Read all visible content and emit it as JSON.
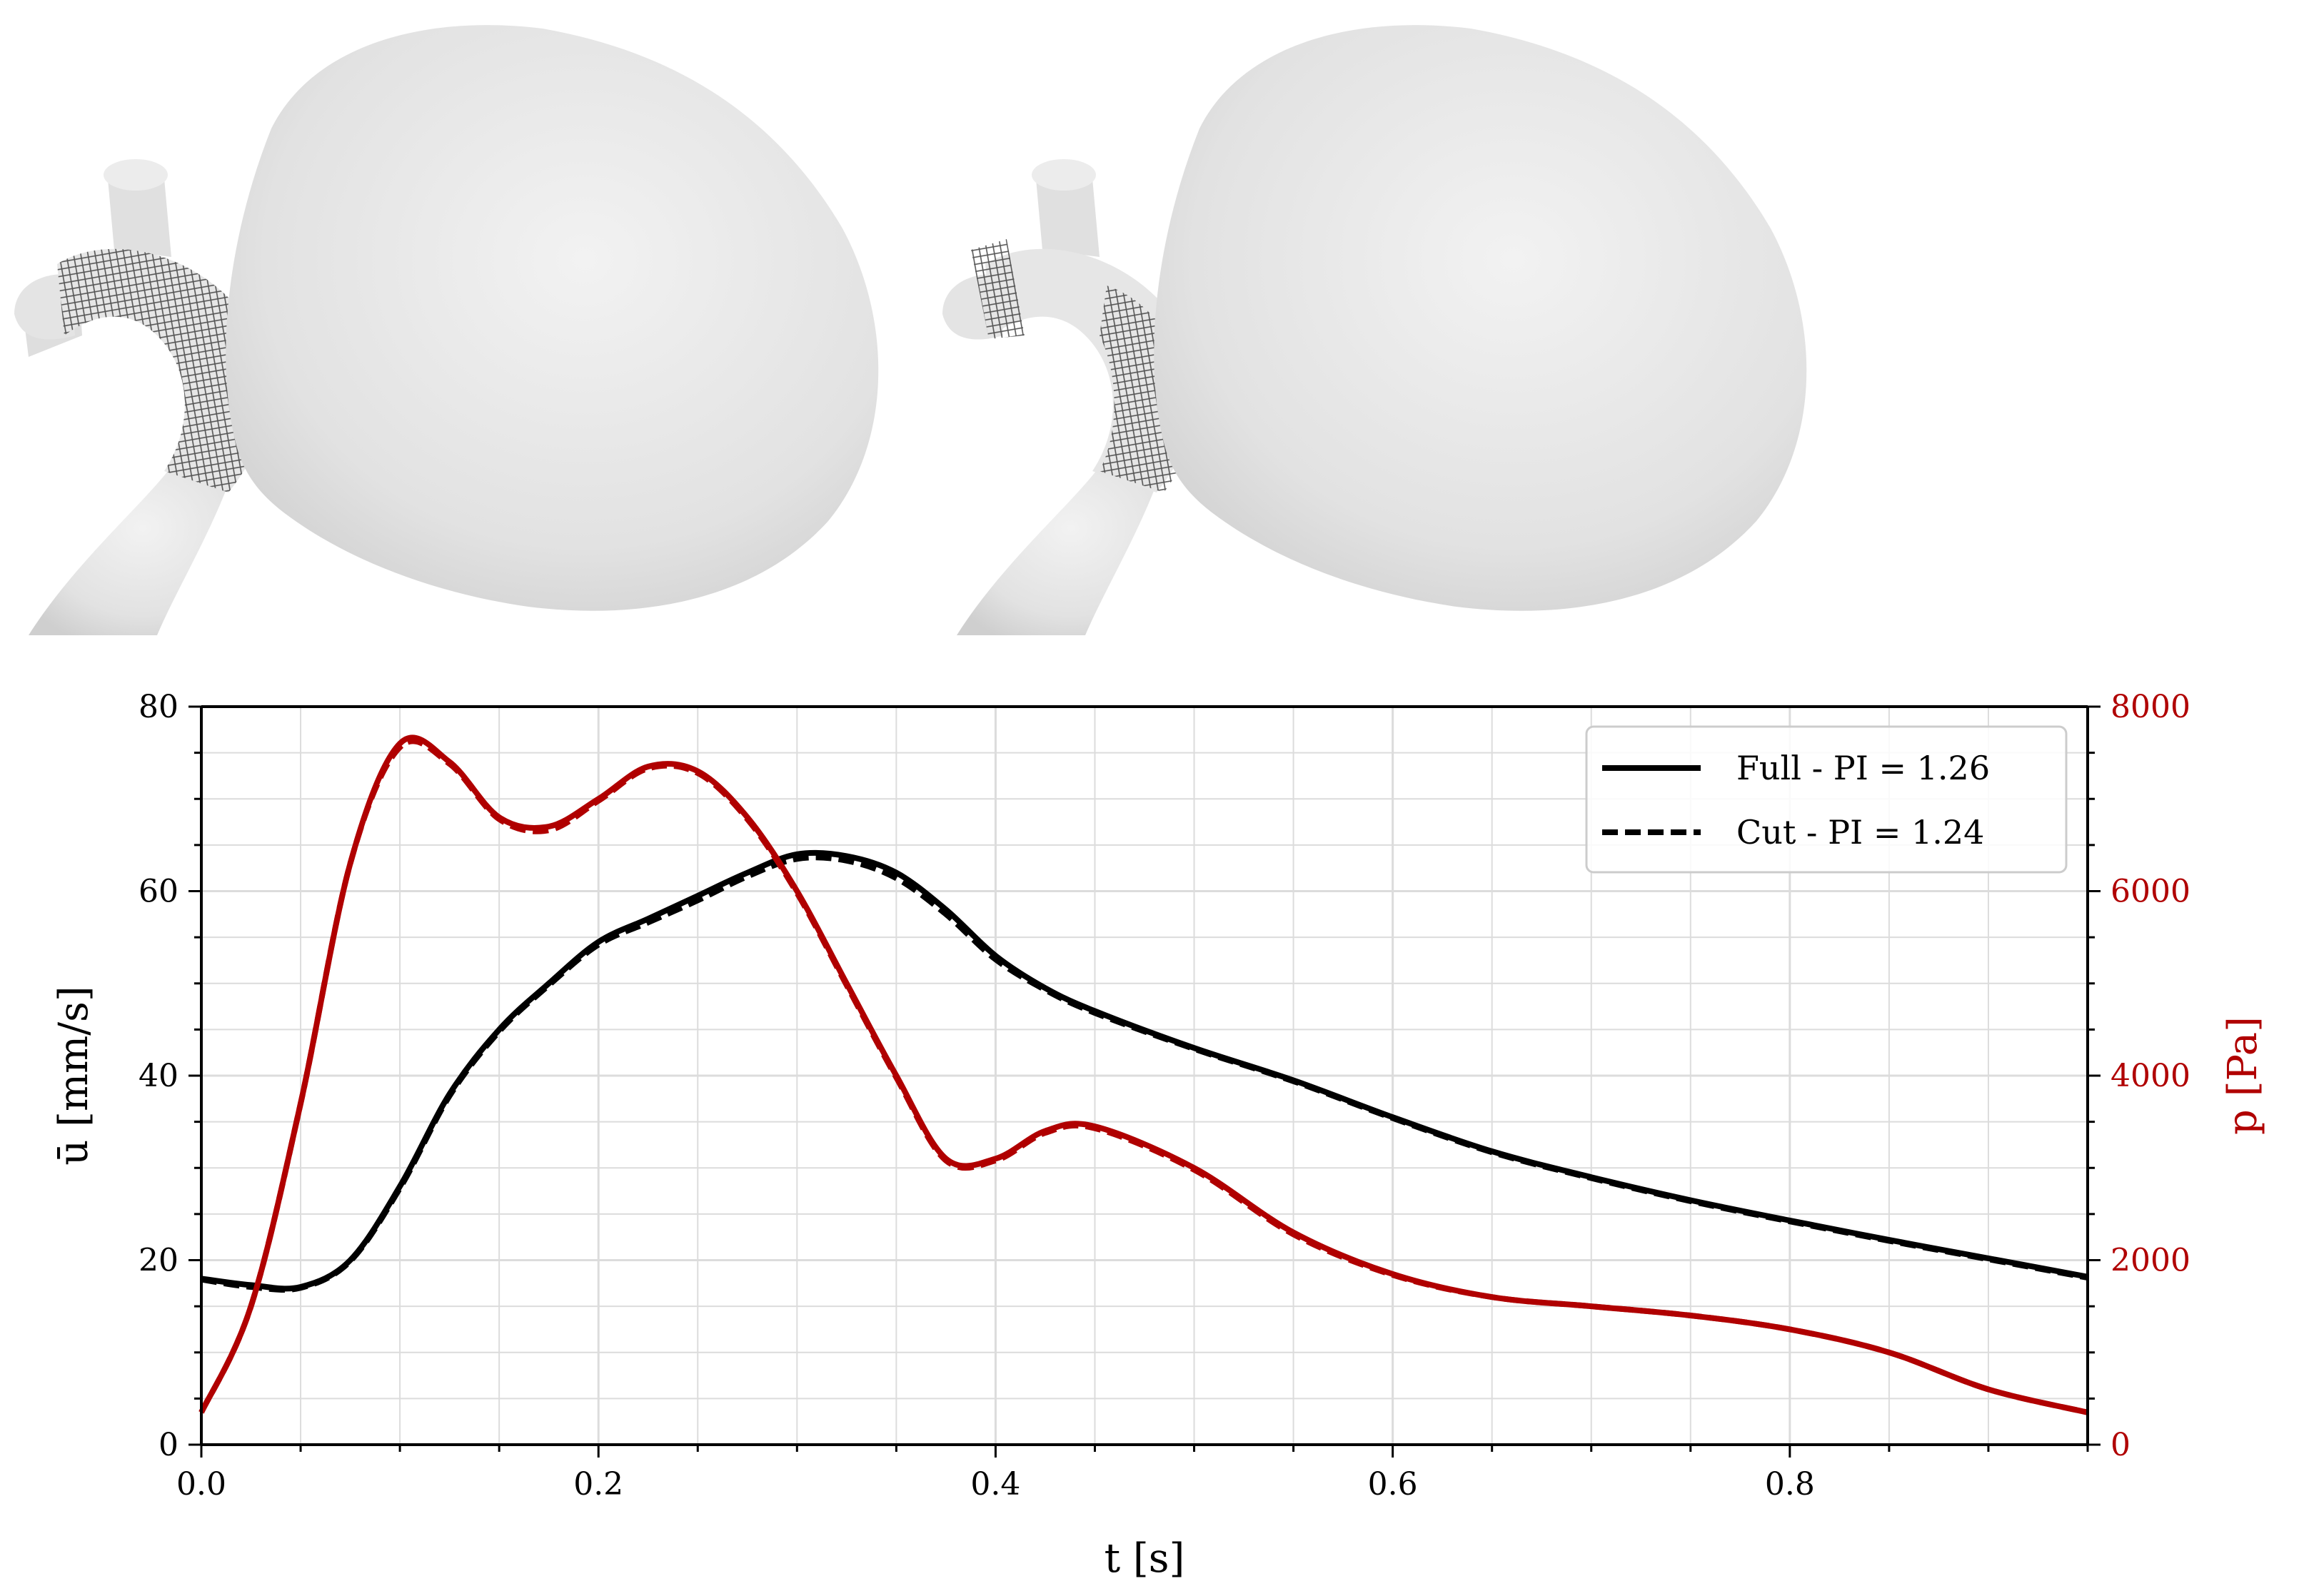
{
  "figure": {
    "renders": [
      {
        "name": "aneurysm-full-stent-render",
        "mesh": "full stent mesh over parent artery"
      },
      {
        "name": "aneurysm-cut-stent-render",
        "mesh": "cut stent mesh segments"
      }
    ]
  },
  "chart_data": {
    "type": "line",
    "title": "",
    "xlabel": "t [s]",
    "ylabel_left": "ū [mm/s]",
    "ylabel_right": "p [Pa]",
    "xlim": [
      0.0,
      0.95
    ],
    "ylim_left": [
      0,
      80
    ],
    "ylim_right": [
      0,
      8000
    ],
    "xticks": [
      "0.0",
      "0.2",
      "0.4",
      "0.6",
      "0.8"
    ],
    "xtick_values": [
      0.0,
      0.2,
      0.4,
      0.6,
      0.8
    ],
    "yticks_left": [
      "0",
      "20",
      "40",
      "60",
      "80"
    ],
    "ytick_values_left": [
      0,
      20,
      40,
      60,
      80
    ],
    "yticks_right": [
      "0",
      "2000",
      "4000",
      "6000",
      "8000"
    ],
    "ytick_values_right": [
      0,
      2000,
      4000,
      6000,
      8000
    ],
    "grid": true,
    "legend_position": "top-right",
    "legend": [
      {
        "label": "Full - PI = 1.26",
        "style": "solid"
      },
      {
        "label": "Cut - PI = 1.24",
        "style": "dashed"
      }
    ],
    "colors": {
      "velocity": "#000000",
      "pressure": "#b00000",
      "grid": "#dcdcdc"
    },
    "x": [
      0.0,
      0.025,
      0.05,
      0.075,
      0.1,
      0.125,
      0.15,
      0.175,
      0.2,
      0.225,
      0.25,
      0.275,
      0.3,
      0.325,
      0.35,
      0.375,
      0.4,
      0.425,
      0.45,
      0.5,
      0.55,
      0.6,
      0.65,
      0.7,
      0.75,
      0.8,
      0.85,
      0.9,
      0.95
    ],
    "series": [
      {
        "name": "Full - PI = 1.26",
        "quantity": "velocity",
        "axis": "left",
        "style": "solid",
        "values": [
          18.0,
          17.3,
          17.1,
          20.0,
          28.0,
          38.0,
          45.0,
          50.0,
          54.5,
          57.0,
          59.5,
          62.0,
          64.0,
          63.8,
          62.0,
          58.0,
          53.0,
          49.5,
          47.0,
          43.0,
          39.5,
          35.5,
          31.8,
          29.0,
          26.5,
          24.3,
          22.2,
          20.2,
          18.2
        ]
      },
      {
        "name": "Cut - PI = 1.24",
        "quantity": "velocity",
        "axis": "left",
        "style": "dashed",
        "values": [
          17.9,
          17.1,
          17.0,
          19.9,
          27.8,
          37.8,
          44.8,
          49.8,
          54.2,
          56.6,
          59.0,
          61.6,
          63.5,
          63.3,
          61.4,
          57.5,
          52.6,
          49.3,
          46.8,
          42.9,
          39.4,
          35.4,
          31.7,
          28.9,
          26.4,
          24.2,
          22.1,
          20.1,
          18.1
        ]
      },
      {
        "name": "Full - PI = 1.26",
        "quantity": "pressure",
        "axis": "right",
        "style": "solid",
        "values": [
          350,
          1500,
          3700,
          6300,
          7600,
          7400,
          6800,
          6700,
          7000,
          7350,
          7300,
          6800,
          6000,
          5000,
          4000,
          3100,
          3100,
          3400,
          3450,
          3000,
          2300,
          1850,
          1600,
          1500,
          1400,
          1250,
          1000,
          600,
          350
        ]
      },
      {
        "name": "Cut - PI = 1.24",
        "quantity": "pressure",
        "axis": "right",
        "style": "dashed",
        "values": [
          350,
          1500,
          3700,
          6300,
          7560,
          7380,
          6780,
          6660,
          6980,
          7330,
          7280,
          6780,
          5980,
          4980,
          3980,
          3080,
          3080,
          3380,
          3430,
          2980,
          2280,
          1840,
          1600,
          1500,
          1400,
          1250,
          1000,
          600,
          350
        ]
      }
    ]
  }
}
